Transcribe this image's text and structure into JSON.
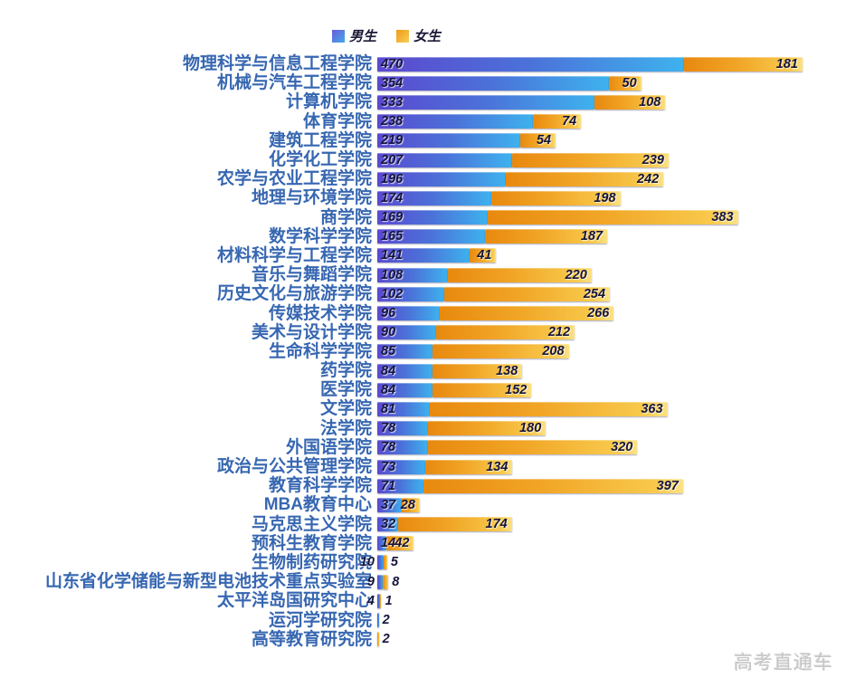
{
  "legend": {
    "male": "男生",
    "female": "女生"
  },
  "watermark": "高考直通车",
  "chart_data": {
    "type": "bar",
    "variant": "horizontal-stacked",
    "legend_position": "top",
    "grid": false,
    "xlim": [
      0,
      651
    ],
    "categories": [
      "物理科学与信息工程学院",
      "机械与汽车工程学院",
      "计算机学院",
      "体育学院",
      "建筑工程学院",
      "化学化工学院",
      "农学与农业工程学院",
      "地理与环境学院",
      "商学院",
      "数学科学学院",
      "材料科学与工程学院",
      "音乐与舞蹈学院",
      "历史文化与旅游学院",
      "传媒技术学院",
      "美术与设计学院",
      "生命科学学院",
      "药学院",
      "医学院",
      "文学院",
      "法学院",
      "外国语学院",
      "政治与公共管理学院",
      "教育科学学院",
      "MBA教育中心",
      "马克思主义学院",
      "预科生教育学院",
      "生物制药研究院",
      "山东省化学储能与新型电池技术重点实验室",
      "太平洋岛国研究中心",
      "运河学研究院",
      "高等教育研究院"
    ],
    "series": [
      {
        "name": "男生",
        "color_start": "#5b49cf",
        "color_end": "#3eb2ee",
        "values": [
          470,
          354,
          333,
          238,
          219,
          207,
          196,
          174,
          169,
          165,
          141,
          108,
          102,
          96,
          90,
          85,
          84,
          84,
          81,
          78,
          78,
          73,
          71,
          37,
          32,
          14,
          10,
          9,
          4,
          2,
          0
        ]
      },
      {
        "name": "女生",
        "color_start": "#e8890f",
        "color_end": "#f8ca4d",
        "values": [
          181,
          50,
          108,
          74,
          54,
          239,
          242,
          198,
          383,
          187,
          41,
          220,
          254,
          266,
          212,
          208,
          138,
          152,
          363,
          180,
          320,
          134,
          397,
          28,
          174,
          42,
          5,
          8,
          1,
          0,
          2
        ]
      }
    ]
  }
}
